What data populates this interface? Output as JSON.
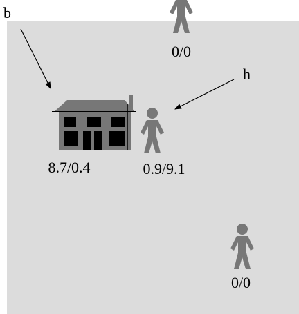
{
  "annotations": [
    {
      "label": "b"
    },
    {
      "label": "h"
    }
  ],
  "house": {
    "payoff": "8.7/0.4"
  },
  "agents": [
    {
      "payoff": "0/0"
    },
    {
      "payoff": "0.9/9.1"
    },
    {
      "payoff": "0/0"
    }
  ]
}
